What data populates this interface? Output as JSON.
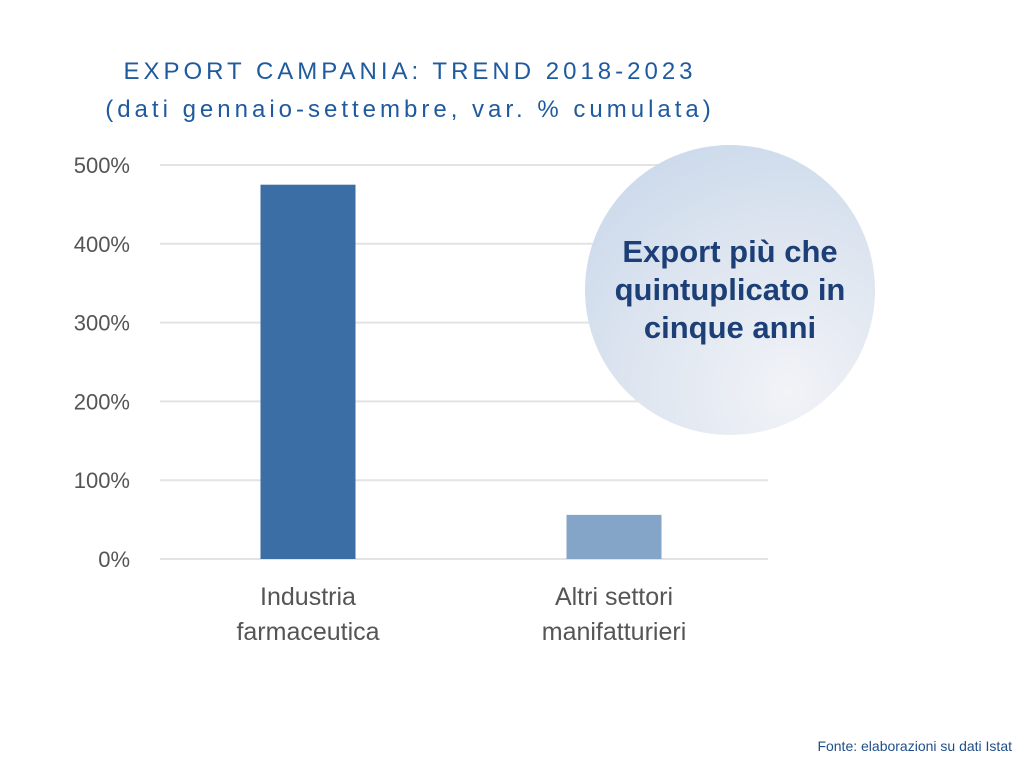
{
  "chart_data": {
    "type": "bar",
    "title": "EXPORT CAMPANIA: TREND 2018-2023",
    "subtitle": "(dati gennaio-settembre, var. % cumulata)",
    "categories": [
      "Industria farmaceutica",
      "Altri settori manifatturieri"
    ],
    "category_lines": [
      [
        "Industria",
        "farmaceutica"
      ],
      [
        "Altri settori",
        "manifatturieri"
      ]
    ],
    "values": [
      475,
      56
    ],
    "colors": [
      "#3b6ea5",
      "#84a5c8"
    ],
    "ylim": [
      0,
      500
    ],
    "yticks": [
      0,
      100,
      200,
      300,
      400,
      500
    ],
    "ytick_labels": [
      "0%",
      "100%",
      "200%",
      "300%",
      "400%",
      "500%"
    ],
    "grid": true,
    "xlabel": "",
    "ylabel": "",
    "annotation": "Export più che quintuplicato in cinque anni",
    "source": "Fonte: elaborazioni su dati Istat"
  }
}
